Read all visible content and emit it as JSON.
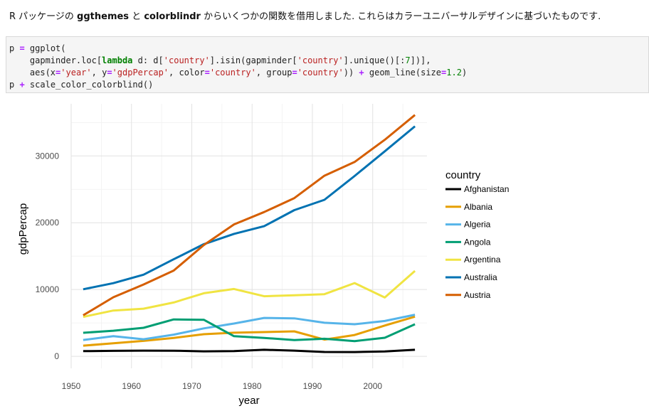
{
  "intro": {
    "prefix": "R パッケージの",
    "pkg1": "ggthemes",
    "mid": "と",
    "pkg2": "colorblindr",
    "suffix": "からいくつかの関数を借用しました. これらはカラーユニバーサルデザインに基づいたものです."
  },
  "code": {
    "line1": [
      [
        "p",
        ""
      ],
      [
        " = ",
        "op"
      ],
      [
        "ggplot(",
        ""
      ]
    ],
    "line2": [
      [
        "    gapminder.loc[",
        ""
      ],
      [
        "lambda",
        "kw"
      ],
      [
        " d: d[",
        ""
      ],
      [
        "'country'",
        "str"
      ],
      [
        "].isin(gapminder[",
        ""
      ],
      [
        "'country'",
        "str"
      ],
      [
        "].unique()[:",
        ""
      ],
      [
        "7",
        "num"
      ],
      [
        "])],",
        ""
      ]
    ],
    "line3": [
      [
        "    aes(x",
        ""
      ],
      [
        "=",
        "op"
      ],
      [
        "'year'",
        "str"
      ],
      [
        ", y",
        ""
      ],
      [
        "=",
        "op"
      ],
      [
        "'gdpPercap'",
        "str"
      ],
      [
        ", color",
        ""
      ],
      [
        "=",
        "op"
      ],
      [
        "'country'",
        "str"
      ],
      [
        ", group",
        ""
      ],
      [
        "=",
        "op"
      ],
      [
        "'country'",
        "str"
      ],
      [
        ")) ",
        ""
      ],
      [
        "+",
        "op"
      ],
      [
        " geom_line(size",
        ""
      ],
      [
        "=",
        "op"
      ],
      [
        "1.2",
        "num"
      ],
      [
        ")",
        ""
      ]
    ],
    "line4": [
      [
        "p",
        ""
      ],
      [
        " + ",
        "op"
      ],
      [
        "scale_color_colorblind()",
        ""
      ]
    ]
  },
  "chart_data": {
    "type": "line",
    "xlabel": "year",
    "ylabel": "gdpPercap",
    "legend_title": "country",
    "legend_position": "right",
    "grid": true,
    "xlim": [
      1950,
      2009
    ],
    "ylim": [
      -1800,
      37800
    ],
    "xticks": [
      1950,
      1960,
      1970,
      1980,
      1990,
      2000
    ],
    "yticks": [
      0,
      10000,
      20000,
      30000
    ],
    "x": [
      1952,
      1957,
      1962,
      1967,
      1972,
      1977,
      1982,
      1987,
      1992,
      1997,
      2002,
      2007
    ],
    "series": [
      {
        "name": "Afghanistan",
        "color": "#000000",
        "values": [
          779,
          821,
          853,
          836,
          740,
          786,
          978,
          852,
          649,
          635,
          727,
          975
        ]
      },
      {
        "name": "Albania",
        "color": "#E69F00",
        "values": [
          1601,
          1942,
          2313,
          2760,
          3313,
          3533,
          3631,
          3739,
          2497,
          3193,
          4604,
          5937
        ]
      },
      {
        "name": "Algeria",
        "color": "#56B4E9",
        "values": [
          2449,
          3014,
          2551,
          3247,
          4183,
          4910,
          5745,
          5681,
          5023,
          4797,
          5288,
          6223
        ]
      },
      {
        "name": "Angola",
        "color": "#009E73",
        "values": [
          3521,
          3828,
          4269,
          5523,
          5473,
          3009,
          2757,
          2430,
          2628,
          2277,
          2773,
          4797
        ]
      },
      {
        "name": "Argentina",
        "color": "#F0E442",
        "values": [
          5911,
          6857,
          7133,
          8053,
          9443,
          10079,
          8998,
          9140,
          9308,
          10967,
          8798,
          12779
        ]
      },
      {
        "name": "Australia",
        "color": "#0072B2",
        "values": [
          10040,
          10950,
          12217,
          14526,
          16789,
          18334,
          19477,
          21889,
          23425,
          26998,
          30688,
          34435
        ]
      },
      {
        "name": "Austria",
        "color": "#D55E00",
        "values": [
          6137,
          8843,
          10751,
          12835,
          16662,
          19749,
          21597,
          23688,
          27042,
          29096,
          32418,
          36126
        ]
      }
    ]
  }
}
